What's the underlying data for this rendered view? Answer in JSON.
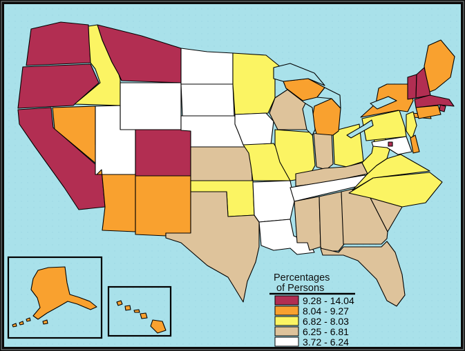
{
  "legend": {
    "title_line1": "Percentages",
    "title_line2": "of Persons",
    "classes": [
      {
        "label": "9.28 - 14.04",
        "color": "#B22E52"
      },
      {
        "label": "8.04 - 9.27",
        "color": "#F9A12F"
      },
      {
        "label": "6.82 - 8.03",
        "color": "#FBF463"
      },
      {
        "label": "6.25 - 6.81",
        "color": "#DEC39B"
      },
      {
        "label": "3.72 - 6.24",
        "color": "#FFFFFF"
      }
    ]
  },
  "map": {
    "background_color": "#A9E1EA",
    "outline_color": "#000000",
    "frame_color": "#0B0B0B",
    "frame_highlight_color": "#8C9496",
    "insets": [
      {
        "id": "ak",
        "name": "Alaska"
      },
      {
        "id": "hi",
        "name": "Hawaii"
      }
    ],
    "states": [
      {
        "id": "wa",
        "name": "Washington",
        "class": 0
      },
      {
        "id": "or",
        "name": "Oregon",
        "class": 0
      },
      {
        "id": "ca",
        "name": "California",
        "class": 0
      },
      {
        "id": "nv",
        "name": "Nevada",
        "class": 1
      },
      {
        "id": "id",
        "name": "Idaho",
        "class": 2
      },
      {
        "id": "mt",
        "name": "Montana",
        "class": 0
      },
      {
        "id": "wy",
        "name": "Wyoming",
        "class": 4
      },
      {
        "id": "ut",
        "name": "Utah",
        "class": 4
      },
      {
        "id": "co",
        "name": "Colorado",
        "class": 0
      },
      {
        "id": "az",
        "name": "Arizona",
        "class": 1
      },
      {
        "id": "nm",
        "name": "New Mexico",
        "class": 1
      },
      {
        "id": "nd",
        "name": "North Dakota",
        "class": 4
      },
      {
        "id": "sd",
        "name": "South Dakota",
        "class": 4
      },
      {
        "id": "ne",
        "name": "Nebraska",
        "class": 4
      },
      {
        "id": "ks",
        "name": "Kansas",
        "class": 3
      },
      {
        "id": "ok",
        "name": "Oklahoma",
        "class": 2
      },
      {
        "id": "tx",
        "name": "Texas",
        "class": 3
      },
      {
        "id": "mn",
        "name": "Minnesota",
        "class": 2
      },
      {
        "id": "ia",
        "name": "Iowa",
        "class": 4
      },
      {
        "id": "mo",
        "name": "Missouri",
        "class": 2
      },
      {
        "id": "ar",
        "name": "Arkansas",
        "class": 4
      },
      {
        "id": "la",
        "name": "Louisiana",
        "class": 4
      },
      {
        "id": "wi",
        "name": "Wisconsin",
        "class": 3
      },
      {
        "id": "il",
        "name": "Illinois",
        "class": 2
      },
      {
        "id": "in",
        "name": "Indiana",
        "class": 3
      },
      {
        "id": "oh",
        "name": "Ohio",
        "class": 2
      },
      {
        "id": "mi",
        "name": "Michigan",
        "class": 1
      },
      {
        "id": "ky",
        "name": "Kentucky",
        "class": 3
      },
      {
        "id": "tn",
        "name": "Tennessee",
        "class": 4
      },
      {
        "id": "ms",
        "name": "Mississippi",
        "class": 3
      },
      {
        "id": "al",
        "name": "Alabama",
        "class": 3
      },
      {
        "id": "ga",
        "name": "Georgia",
        "class": 3
      },
      {
        "id": "sc",
        "name": "South Carolina",
        "class": 3
      },
      {
        "id": "nc",
        "name": "North Carolina",
        "class": 2
      },
      {
        "id": "fl",
        "name": "Florida",
        "class": 3
      },
      {
        "id": "va",
        "name": "Virginia",
        "class": 2
      },
      {
        "id": "wv",
        "name": "West Virginia",
        "class": 2
      },
      {
        "id": "pa",
        "name": "Pennsylvania",
        "class": 2
      },
      {
        "id": "ny",
        "name": "New York",
        "class": 1
      },
      {
        "id": "me",
        "name": "Maine",
        "class": 1
      },
      {
        "id": "vt",
        "name": "Vermont",
        "class": 0
      },
      {
        "id": "nh",
        "name": "New Hampshire",
        "class": 0
      },
      {
        "id": "ma",
        "name": "Massachusetts",
        "class": 0
      },
      {
        "id": "ri",
        "name": "Rhode Island",
        "class": 0
      },
      {
        "id": "ct",
        "name": "Connecticut",
        "class": 1
      },
      {
        "id": "nj",
        "name": "New Jersey",
        "class": 2
      },
      {
        "id": "de",
        "name": "Delaware",
        "class": 1
      },
      {
        "id": "md",
        "name": "Maryland",
        "class": 4
      },
      {
        "id": "ak",
        "name": "Alaska",
        "class": 1
      },
      {
        "id": "hi",
        "name": "Hawaii",
        "class": 1
      },
      {
        "id": "dc",
        "name": "District of Columbia",
        "class": 0
      }
    ]
  }
}
